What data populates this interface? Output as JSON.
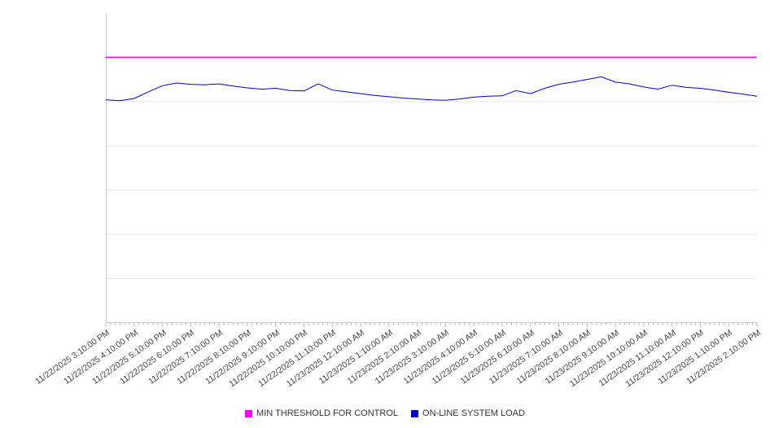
{
  "chart_data": {
    "type": "line",
    "title": "",
    "xlabel": "",
    "ylabel": "",
    "ylim": [
      0,
      7
    ],
    "gridline_values": [
      1,
      2,
      3,
      4,
      5,
      6
    ],
    "grid": true,
    "legend_position": "bottom",
    "x_range_hours": [
      0,
      23
    ],
    "x_tick_labels": [
      "11/22/2025 3:10:00 PM",
      "11/22/2025 4:10:00 PM",
      "11/22/2025 5:10:00 PM",
      "11/22/2025 6:10:00 PM",
      "11/22/2025 7:10:00 PM",
      "11/22/2025 8:10:00 PM",
      "11/22/2025 9:10:00 PM",
      "11/22/2025 10:10:00 PM",
      "11/22/2025 11:10:00 PM",
      "11/23/2025 12:10:00 AM",
      "11/23/2025 1:10:00 AM",
      "11/23/2025 2:10:00 AM",
      "11/23/2025 3:10:00 AM",
      "11/23/2025 4:10:00 AM",
      "11/23/2025 5:10:00 AM",
      "11/23/2025 6:10:00 AM",
      "11/23/2025 7:10:00 AM",
      "11/23/2025 8:10:00 AM",
      "11/23/2025 9:10:00 AM",
      "11/23/2025 10:10:00 AM",
      "11/23/2025 11:10:00 AM",
      "11/23/2025 12:10:00 PM",
      "11/23/2025 1:10:00 PM",
      "11/23/2025 2:10:00 PM"
    ],
    "series": [
      {
        "name": "MIN THRESHOLD FOR CONTROL",
        "type": "threshold",
        "color": "#ff00ff",
        "value": 6.0
      },
      {
        "name": "ON-LINE SYSTEM LOAD",
        "type": "line",
        "color": "#0000cd",
        "x_start_hours": 0,
        "x_step_hours": 0.5,
        "values": [
          5.04,
          5.02,
          5.07,
          5.22,
          5.36,
          5.42,
          5.39,
          5.38,
          5.4,
          5.35,
          5.31,
          5.28,
          5.3,
          5.25,
          5.24,
          5.4,
          5.26,
          5.22,
          5.18,
          5.14,
          5.11,
          5.08,
          5.06,
          5.04,
          5.03,
          5.06,
          5.1,
          5.12,
          5.13,
          5.25,
          5.18,
          5.3,
          5.39,
          5.44,
          5.5,
          5.56,
          5.44,
          5.4,
          5.33,
          5.28,
          5.37,
          5.32,
          5.3,
          5.26,
          5.21,
          5.17,
          5.12
        ]
      }
    ]
  },
  "legend": {
    "items": [
      {
        "label": "MIN THRESHOLD FOR CONTROL",
        "color": "#ff00ff"
      },
      {
        "label": "ON-LINE SYSTEM LOAD",
        "color": "#0000cd"
      }
    ]
  },
  "style_colors": {
    "gridline": "#e6e6e6",
    "axis": "#cccccc",
    "tick": "#bbbbbb",
    "label_text": "#444444"
  }
}
